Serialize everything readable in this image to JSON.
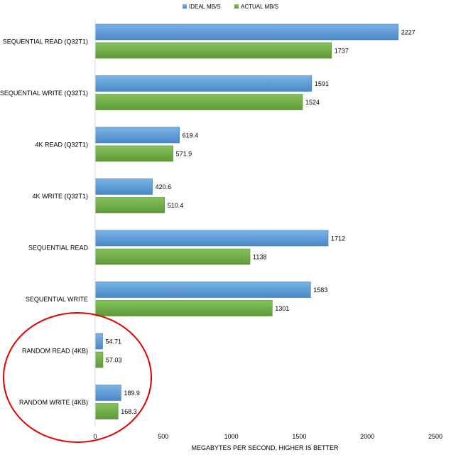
{
  "chart_data": {
    "type": "bar",
    "orientation": "horizontal",
    "title": "",
    "xlabel": "MEGABYTES PER SECOND, HIGHER IS BETTER",
    "ylabel": "",
    "xlim": [
      0,
      2500
    ],
    "x_ticks": [
      0,
      500,
      1000,
      1500,
      2000,
      2500
    ],
    "grid": false,
    "legend_position": "top",
    "categories": [
      "SEQUENTIAL READ (Q32T1)",
      "SEQUENTIAL WRITE (Q32T1)",
      "4K READ (Q32T1)",
      "4K WRITE (Q32T1)",
      "SEQUENTIAL READ",
      "SEQUENTIAL WRITE",
      "RANDOM READ (4KB)",
      "RANDOM WRITE (4KB)"
    ],
    "series": [
      {
        "name": "IDEAL MB/S",
        "color": "#5b9bd5",
        "values": [
          2227,
          1591,
          619.4,
          420.6,
          1712,
          1583,
          54.71,
          189.9
        ],
        "labels": [
          "2227",
          "1591",
          "619.4",
          "420.6",
          "1712",
          "1583",
          "54.71",
          "189.9"
        ]
      },
      {
        "name": "ACTUAL MB/S",
        "color": "#70ad47",
        "values": [
          1737,
          1524,
          571.9,
          510.4,
          1138,
          1301,
          57.03,
          168.3
        ],
        "labels": [
          "1737",
          "1524",
          "571.9",
          "510.4",
          "1138",
          "1301",
          "57.03",
          "168.3"
        ]
      }
    ],
    "annotations": [
      {
        "type": "ellipse",
        "color": "#e00000",
        "encloses": [
          "RANDOM READ (4KB)",
          "RANDOM WRITE (4KB)"
        ]
      }
    ]
  }
}
